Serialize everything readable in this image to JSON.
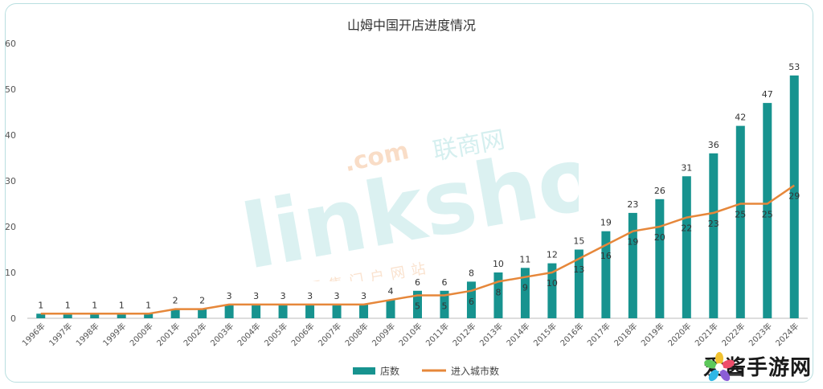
{
  "watermark": {
    "brand": "linkshop",
    "com": ".com",
    "cn_name": "联商网",
    "tagline": "中国零售门户网站"
  },
  "badge": {
    "text": "爱酱手游网"
  },
  "chart_data": {
    "type": "bar",
    "title": "山姆中国开店进度情况",
    "categories": [
      "1996年",
      "1997年",
      "1998年",
      "1999年",
      "2000年",
      "2001年",
      "2002年",
      "2003年",
      "2004年",
      "2005年",
      "2006年",
      "2007年",
      "2008年",
      "2009年",
      "2010年",
      "2011年",
      "2012年",
      "2013年",
      "2014年",
      "2015年",
      "2016年",
      "2017年",
      "2018年",
      "2019年",
      "2020年",
      "2021年",
      "2022年",
      "2023年",
      "2024年"
    ],
    "series": [
      {
        "name": "店数",
        "type": "bar",
        "color": "#17938f",
        "values": [
          1,
          1,
          1,
          1,
          1,
          2,
          2,
          3,
          3,
          3,
          3,
          3,
          3,
          4,
          6,
          6,
          8,
          10,
          11,
          12,
          15,
          19,
          23,
          26,
          31,
          36,
          42,
          47,
          53
        ]
      },
      {
        "name": "进入城市数",
        "type": "line",
        "color": "#e6873a",
        "values": [
          1,
          1,
          1,
          1,
          1,
          2,
          2,
          3,
          3,
          3,
          3,
          3,
          3,
          4,
          5,
          5,
          6,
          8,
          9,
          10,
          13,
          16,
          19,
          20,
          22,
          23,
          25,
          25,
          29
        ]
      }
    ],
    "ylim": [
      0,
      60
    ],
    "yticks": [
      0,
      10,
      20,
      30,
      40,
      50,
      60
    ],
    "grid": false,
    "legend_position": "bottom-center"
  }
}
